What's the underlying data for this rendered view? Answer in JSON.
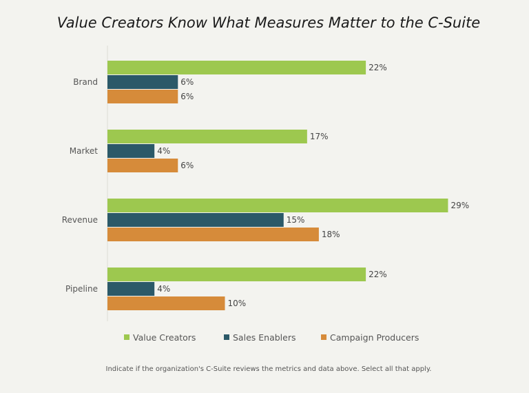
{
  "chart_data": {
    "type": "bar",
    "orientation": "horizontal",
    "title": "Value Creators Know What Measures Matter to the C-Suite",
    "categories": [
      "Brand",
      "Market",
      "Revenue",
      "Pipeline"
    ],
    "series": [
      {
        "name": "Value Creators",
        "color": "#9dc84f",
        "values": [
          22,
          17,
          29,
          22
        ]
      },
      {
        "name": "Sales Enablers",
        "color": "#2b5968",
        "values": [
          6,
          4,
          15,
          4
        ]
      },
      {
        "name": "Campaign Producers",
        "color": "#d68b3a",
        "values": [
          6,
          6,
          18,
          10
        ]
      }
    ],
    "value_suffix": "%",
    "xlim": [
      0,
      30
    ],
    "grid": false,
    "legend": "bottom",
    "footnote": "Indicate if the organization's C-Suite reviews the metrics and data above. Select all that apply."
  }
}
